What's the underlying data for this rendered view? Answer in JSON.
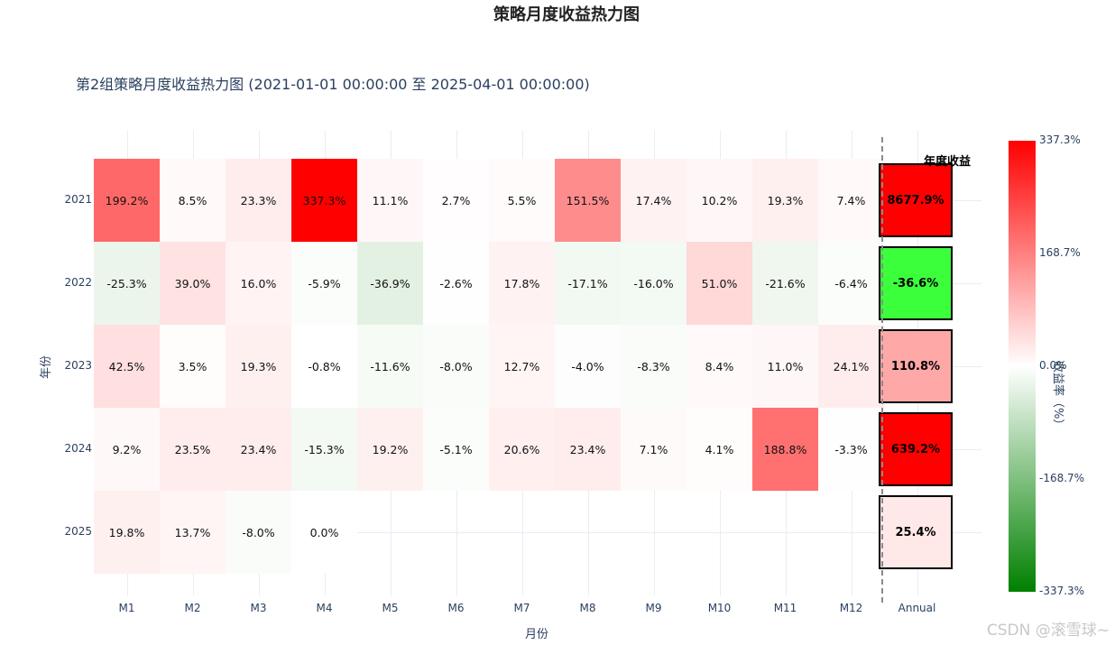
{
  "titles": {
    "main": "策略月度收益热力图",
    "subtitle": "第2组策略月度收益热力图 (2021-01-01 00:00:00 至 2025-04-01 00:00:00)",
    "x_axis": "月份",
    "y_axis": "年份",
    "annual_header": "年度收益",
    "colorbar": "收益率（%）"
  },
  "colorbar": {
    "ticks": [
      "337.3%",
      "168.7%",
      "0.0%",
      "-168.7%",
      "-337.3%"
    ],
    "colors": {
      "max": "#ff0000",
      "mid": "#ffffff",
      "min": "#008000"
    }
  },
  "watermark": "CSDN @滚雪球~",
  "chart_data": {
    "type": "heatmap",
    "title": "策略月度收益热力图",
    "subtitle": "第2组策略月度收益热力图 (2021-01-01 00:00:00 至 2025-04-01 00:00:00)",
    "xlabel": "月份",
    "ylabel": "年份",
    "x": [
      "M1",
      "M2",
      "M3",
      "M4",
      "M5",
      "M6",
      "M7",
      "M8",
      "M9",
      "M10",
      "M11",
      "M12",
      "Annual"
    ],
    "y": [
      "2021",
      "2022",
      "2023",
      "2024",
      "2025"
    ],
    "values": [
      [
        199.2,
        8.5,
        23.3,
        337.3,
        11.1,
        2.7,
        5.5,
        151.5,
        17.4,
        10.2,
        19.3,
        7.4
      ],
      [
        -25.3,
        39.0,
        16.0,
        -5.9,
        -36.9,
        -2.6,
        17.8,
        -17.1,
        -16.0,
        51.0,
        -21.6,
        -6.4
      ],
      [
        42.5,
        3.5,
        19.3,
        -0.8,
        -11.6,
        -8.0,
        12.7,
        -4.0,
        -8.3,
        8.4,
        11.0,
        24.1
      ],
      [
        9.2,
        23.5,
        23.4,
        -15.3,
        19.2,
        -5.1,
        20.6,
        23.4,
        7.1,
        4.1,
        188.8,
        -3.3
      ],
      [
        19.8,
        13.7,
        -8.0,
        0.0,
        null,
        null,
        null,
        null,
        null,
        null,
        null,
        null
      ]
    ],
    "labels": [
      [
        "199.2%",
        "8.5%",
        "23.3%",
        "337.3%",
        "11.1%",
        "2.7%",
        "5.5%",
        "151.5%",
        "17.4%",
        "10.2%",
        "19.3%",
        "7.4%"
      ],
      [
        "-25.3%",
        "39.0%",
        "16.0%",
        "-5.9%",
        "-36.9%",
        "-2.6%",
        "17.8%",
        "-17.1%",
        "-16.0%",
        "51.0%",
        "-21.6%",
        "-6.4%"
      ],
      [
        "42.5%",
        "3.5%",
        "19.3%",
        "-0.8%",
        "-11.6%",
        "-8.0%",
        "12.7%",
        "-4.0%",
        "-8.3%",
        "8.4%",
        "11.0%",
        "24.1%"
      ],
      [
        "9.2%",
        "23.5%",
        "23.4%",
        "-15.3%",
        "19.2%",
        "-5.1%",
        "20.6%",
        "23.4%",
        "7.1%",
        "4.1%",
        "188.8%",
        "-3.3%"
      ],
      [
        "19.8%",
        "13.7%",
        "-8.0%",
        "0.0%",
        "",
        "",
        "",
        "",
        "",
        "",
        "",
        ""
      ]
    ],
    "annual": [
      {
        "year": "2021",
        "value": 8677.9,
        "label": "8677.9%",
        "color": "#ff0000"
      },
      {
        "year": "2022",
        "value": -36.6,
        "label": "-36.6%",
        "color": "#3cff3c"
      },
      {
        "year": "2023",
        "value": 110.8,
        "label": "110.8%",
        "color": "#ffa8a8"
      },
      {
        "year": "2024",
        "value": 639.2,
        "label": "639.2%",
        "color": "#ff0000"
      },
      {
        "year": "2025",
        "value": 25.4,
        "label": "25.4%",
        "color": "#ffe8e8"
      }
    ],
    "zrange": [
      -337.3,
      337.3
    ],
    "colorscale": [
      "#008000",
      "#ffffff",
      "#ff0000"
    ],
    "colorbar_title": "收益率（%）",
    "grid": true
  }
}
